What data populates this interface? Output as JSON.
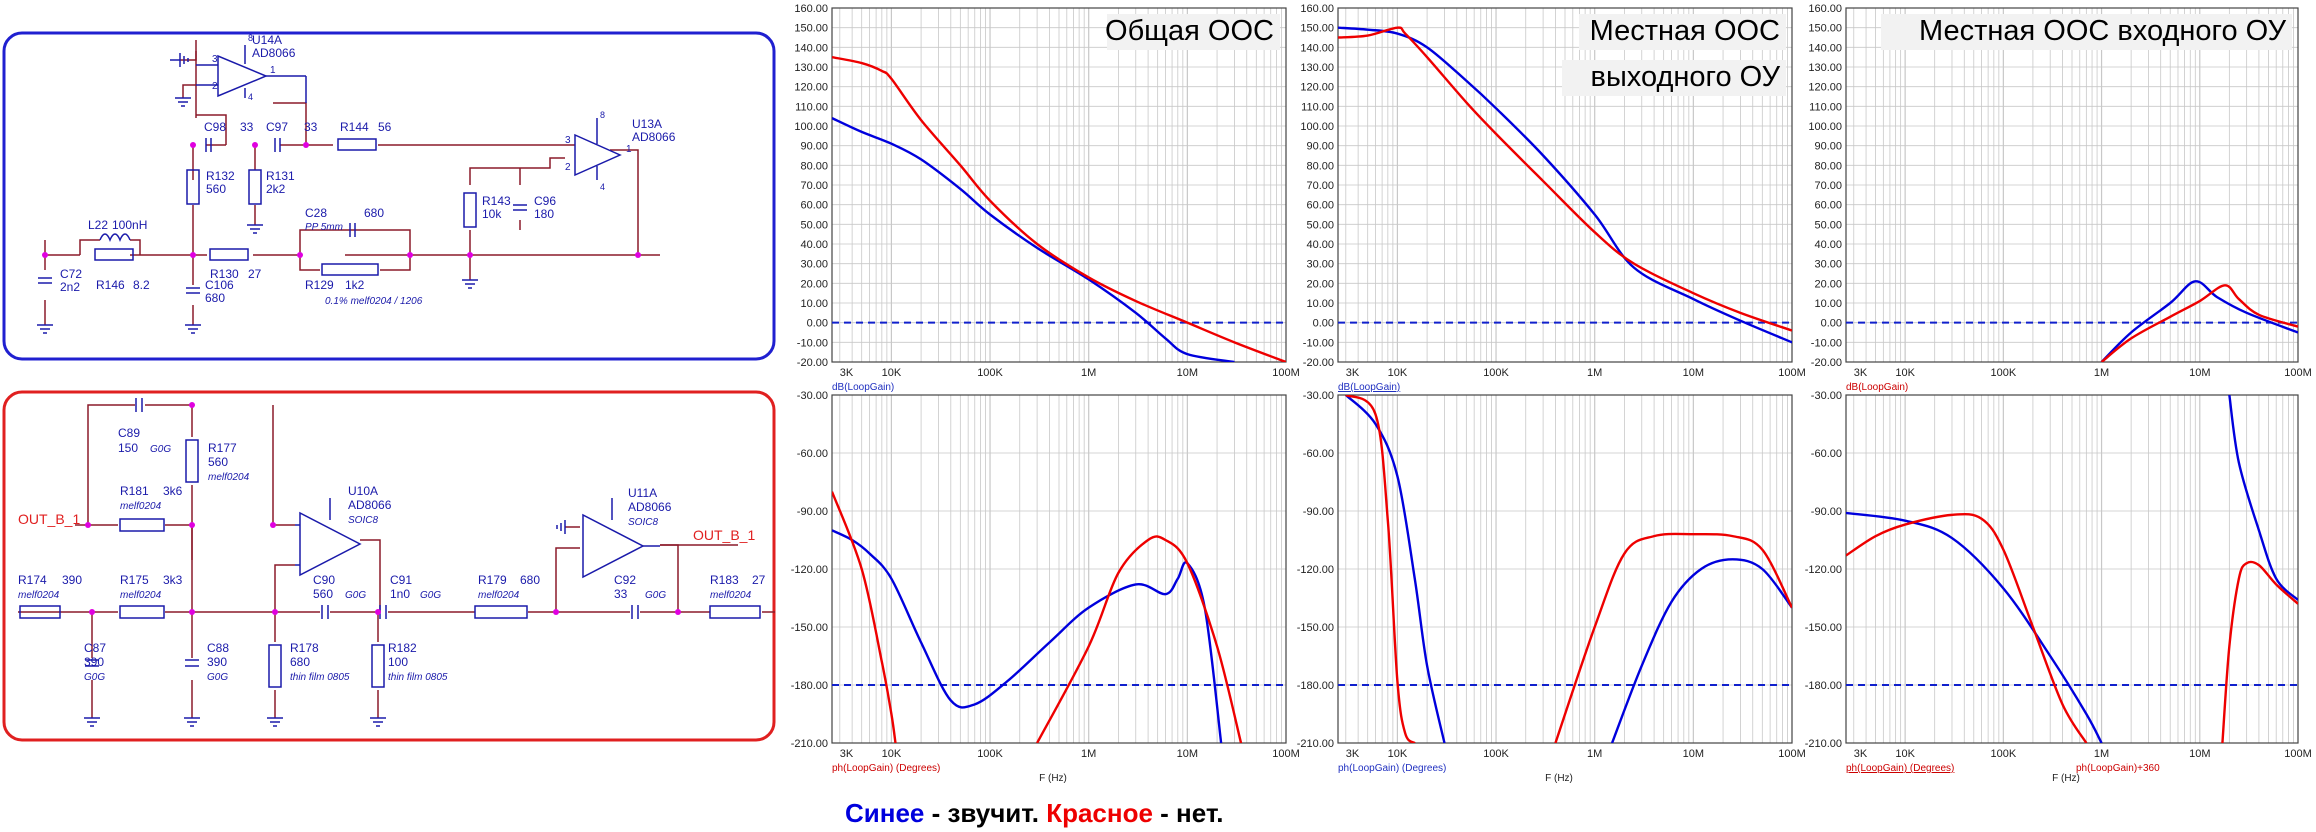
{
  "caption": {
    "blue_word": "Синее",
    "blue_rest": " - звучит. ",
    "red_word": "Красное",
    "red_rest": " - нет."
  },
  "colors": {
    "blue": "#0000dd",
    "red": "#ee0000",
    "schematic_blue": "#1a1aaa",
    "wire": "#8b1a2a",
    "node": "#e000e0",
    "frame_blue": "#2020d0",
    "frame_red": "#e02020",
    "grid": "#c8c8c8"
  },
  "schematic_top": {
    "parts": [
      {
        "ref": "U14A",
        "value": "AD8066"
      },
      {
        "ref": "U13A",
        "value": "AD8066"
      },
      {
        "ref": "C98",
        "value": "33"
      },
      {
        "ref": "C97",
        "value": "33"
      },
      {
        "ref": "R144",
        "value": "56"
      },
      {
        "ref": "R132",
        "value": "560"
      },
      {
        "ref": "R131",
        "value": "2k2"
      },
      {
        "ref": "C28",
        "value": "680",
        "note": "PP 5mm"
      },
      {
        "ref": "R143",
        "value": "10k"
      },
      {
        "ref": "C96",
        "value": "180"
      },
      {
        "ref": "L22",
        "value": "100nH"
      },
      {
        "ref": "C72",
        "value": "2n2"
      },
      {
        "ref": "R146",
        "value": "8.2"
      },
      {
        "ref": "R130",
        "value": "27"
      },
      {
        "ref": "C106",
        "value": "680"
      },
      {
        "ref": "R129",
        "value": "1k2",
        "note": "0.1% melf0204 / 1206"
      }
    ],
    "pins": [
      "3",
      "2",
      "1",
      "8",
      "4"
    ]
  },
  "schematic_bottom": {
    "net_in": "OUT_B_1",
    "net_out": "OUT_B_1",
    "parts": [
      {
        "ref": "C89",
        "value": "150",
        "note": "G0G"
      },
      {
        "ref": "R177",
        "value": "560",
        "note": "melf0204"
      },
      {
        "ref": "R181",
        "value": "3k6",
        "note": "melf0204"
      },
      {
        "ref": "U10A",
        "value": "AD8066",
        "note": "SOIC8"
      },
      {
        "ref": "U11A",
        "value": "AD8066",
        "note": "SOIC8"
      },
      {
        "ref": "R174",
        "value": "390",
        "note": "melf0204"
      },
      {
        "ref": "R175",
        "value": "3k3",
        "note": "melf0204"
      },
      {
        "ref": "C90",
        "value": "560",
        "note": "G0G"
      },
      {
        "ref": "C91",
        "value": "1n0",
        "note": "G0G"
      },
      {
        "ref": "R179",
        "value": "680",
        "note": "melf0204"
      },
      {
        "ref": "C92",
        "value": "33",
        "note": "G0G"
      },
      {
        "ref": "R183",
        "value": "27",
        "note": "melf0204"
      },
      {
        "ref": "C87",
        "value": "390",
        "note": "G0G"
      },
      {
        "ref": "C88",
        "value": "390",
        "note": "G0G"
      },
      {
        "ref": "R178",
        "value": "680",
        "note": "thin film 0805"
      },
      {
        "ref": "R182",
        "value": "100",
        "note": "thin film 0805"
      }
    ]
  },
  "plots": {
    "freq_ticks": [
      "3K",
      "10K",
      "100K",
      "1M",
      "10M",
      "100M"
    ],
    "xlabel": "F (Hz)",
    "mag_ticks": [
      "160.00",
      "150.00",
      "140.00",
      "130.00",
      "120.00",
      "110.00",
      "100.00",
      "90.00",
      "80.00",
      "70.00",
      "60.00",
      "50.00",
      "40.00",
      "30.00",
      "20.00",
      "10.00",
      "0.00",
      "-10.00",
      "-20.00"
    ],
    "phase_ticks": [
      "-30.00",
      "-60.00",
      "-90.00",
      "-120.00",
      "-150.00",
      "-180.00",
      "-210.00"
    ],
    "panels": [
      {
        "title": [
          "Общая ООС"
        ],
        "mag_label": "dB(LoopGain)",
        "phase_label": "ph(LoopGain) (Degrees)",
        "phase_label2": ""
      },
      {
        "title": [
          "Местная ООС",
          "выходного ОУ"
        ],
        "mag_label": "dB(LoopGain)",
        "phase_label": "ph(LoopGain) (Degrees)",
        "phase_label2": ""
      },
      {
        "title": [
          "Местная ООС входного ОУ"
        ],
        "mag_label": "dB(LoopGain)",
        "phase_label": "ph(LoopGain) (Degrees)",
        "phase_label2": "ph(LoopGain)+360"
      }
    ]
  },
  "chart_data": [
    {
      "type": "line",
      "title": "Общая ООС",
      "ylabel": "dB(LoopGain)",
      "xlabel": "F (Hz)",
      "xscale": "log",
      "xlim": [
        2500,
        100000000
      ],
      "ylim": [
        -20,
        160
      ],
      "reference_line": 0,
      "series": [
        {
          "color": "blue",
          "x": [
            2500,
            5000,
            10000,
            20000,
            50000,
            100000,
            300000,
            1000000,
            3000000,
            6000000,
            10000000,
            30000000
          ],
          "y": [
            104,
            97,
            91,
            83,
            68,
            55,
            38,
            22,
            5,
            -8,
            -16,
            -20
          ]
        },
        {
          "color": "red",
          "x": [
            2500,
            5000,
            8000,
            10000,
            20000,
            50000,
            100000,
            300000,
            1000000,
            3000000,
            10000000,
            30000000,
            100000000
          ],
          "y": [
            135,
            132,
            128,
            124,
            103,
            80,
            62,
            40,
            23,
            11,
            0,
            -10,
            -20
          ]
        }
      ]
    },
    {
      "type": "line",
      "title": "Местная ООС выходного ОУ",
      "ylabel": "dB(LoopGain)",
      "xlabel": "F (Hz)",
      "xscale": "log",
      "xlim": [
        2500,
        100000000
      ],
      "ylim": [
        -20,
        160
      ],
      "reference_line": 0,
      "series": [
        {
          "color": "blue",
          "x": [
            2500,
            5000,
            10000,
            20000,
            50000,
            100000,
            300000,
            1000000,
            2500000,
            10000000,
            30000000,
            100000000
          ],
          "y": [
            150,
            149,
            147,
            140,
            123,
            109,
            85,
            55,
            28,
            12,
            1,
            -10
          ]
        },
        {
          "color": "red",
          "x": [
            2500,
            5000,
            10000,
            12000,
            20000,
            50000,
            100000,
            300000,
            1000000,
            2500000,
            10000000,
            30000000,
            100000000
          ],
          "y": [
            145,
            146,
            150,
            147,
            135,
            112,
            96,
            72,
            46,
            30,
            15,
            5,
            -4
          ]
        }
      ]
    },
    {
      "type": "line",
      "title": "Местная ООС входного ОУ",
      "ylabel": "dB(LoopGain)",
      "xlabel": "F (Hz)",
      "xscale": "log",
      "xlim": [
        2500,
        100000000
      ],
      "ylim": [
        -20,
        160
      ],
      "reference_line": 0,
      "series": [
        {
          "color": "blue",
          "x": [
            1000000,
            2000000,
            5000000,
            9000000,
            15000000,
            30000000,
            100000000
          ],
          "y": [
            -20,
            -5,
            10,
            21,
            13,
            5,
            -5
          ]
        },
        {
          "color": "red",
          "x": [
            1000000,
            2000000,
            5000000,
            10000000,
            18000000,
            25000000,
            40000000,
            100000000
          ],
          "y": [
            -20,
            -8,
            3,
            11,
            19,
            12,
            4,
            -2
          ]
        }
      ]
    },
    {
      "type": "line",
      "ylabel": "ph(LoopGain) (Degrees)",
      "xlabel": "F (Hz)",
      "xscale": "log",
      "xlim": [
        2500,
        100000000
      ],
      "ylim": [
        -210,
        -30
      ],
      "reference_line": -180,
      "series": [
        {
          "color": "blue",
          "x": [
            2500,
            4000,
            6000,
            10000,
            20000,
            40000,
            70000,
            150000,
            400000,
            1000000,
            3000000,
            6000000,
            8000000,
            10000000,
            15000000,
            22000000
          ],
          "y": [
            -100,
            -105,
            -112,
            -125,
            -158,
            -188,
            -190,
            -178,
            -158,
            -140,
            -128,
            -133,
            -125,
            -117,
            -140,
            -210
          ]
        },
        {
          "color": "red",
          "x": [
            2500,
            5000,
            8000,
            10000,
            11000
          ],
          "y": [
            -80,
            -120,
            -168,
            -195,
            -210
          ]
        },
        {
          "color": "red",
          "x": [
            300000,
            1000000,
            2000000,
            4000000,
            6000000,
            10000000,
            20000000,
            35000000
          ],
          "y": [
            -210,
            -160,
            -122,
            -105,
            -105,
            -117,
            -160,
            -210
          ]
        }
      ]
    },
    {
      "type": "line",
      "ylabel": "ph(LoopGain) (Degrees)",
      "xlabel": "F (Hz)",
      "xscale": "log",
      "xlim": [
        2500,
        100000000
      ],
      "ylim": [
        -210,
        -30
      ],
      "reference_line": -180,
      "series": [
        {
          "color": "blue",
          "x": [
            3000,
            6000,
            10000,
            15000,
            20000,
            30000
          ],
          "y": [
            -30,
            -45,
            -72,
            -125,
            -170,
            -210
          ]
        },
        {
          "color": "blue",
          "x": [
            1500000,
            3000000,
            6000000,
            12000000,
            25000000,
            50000000,
            100000000
          ],
          "y": [
            -210,
            -170,
            -137,
            -120,
            -115,
            -120,
            -140
          ]
        },
        {
          "color": "red",
          "x": [
            3000,
            6000,
            8000,
            10000,
            12000,
            15000
          ],
          "y": [
            -30,
            -40,
            -95,
            -178,
            -205,
            -210
          ]
        },
        {
          "color": "red",
          "x": [
            400000,
            1000000,
            2000000,
            4000000,
            10000000,
            25000000,
            50000000,
            100000000
          ],
          "y": [
            -210,
            -150,
            -112,
            -103,
            -102,
            -103,
            -110,
            -140
          ]
        }
      ]
    },
    {
      "type": "line",
      "ylabel": "ph(LoopGain) (Degrees)",
      "xlabel": "F (Hz)",
      "xscale": "log",
      "xlim": [
        2500,
        100000000
      ],
      "ylim": [
        -210,
        -30
      ],
      "reference_line": -180,
      "series": [
        {
          "color": "blue",
          "x": [
            2500,
            10000,
            30000,
            100000,
            300000,
            700000,
            1000000
          ],
          "y": [
            -91,
            -95,
            -104,
            -130,
            -165,
            -195,
            -210
          ]
        },
        {
          "color": "blue",
          "x": [
            20000000,
            25000000,
            40000000,
            60000000,
            100000000
          ],
          "y": [
            -30,
            -65,
            -100,
            -125,
            -136
          ]
        },
        {
          "color": "red",
          "x": [
            2500,
            5000,
            10000,
            30000,
            60000,
            100000,
            200000,
            400000,
            700000
          ],
          "y": [
            -113,
            -103,
            -97,
            -92,
            -94,
            -110,
            -150,
            -190,
            -210
          ]
        },
        {
          "color": "red",
          "x": [
            17000000,
            20000000,
            25000000,
            30000000,
            40000000,
            60000000,
            100000000
          ],
          "y": [
            -210,
            -160,
            -125,
            -117,
            -118,
            -128,
            -138
          ]
        }
      ]
    }
  ]
}
